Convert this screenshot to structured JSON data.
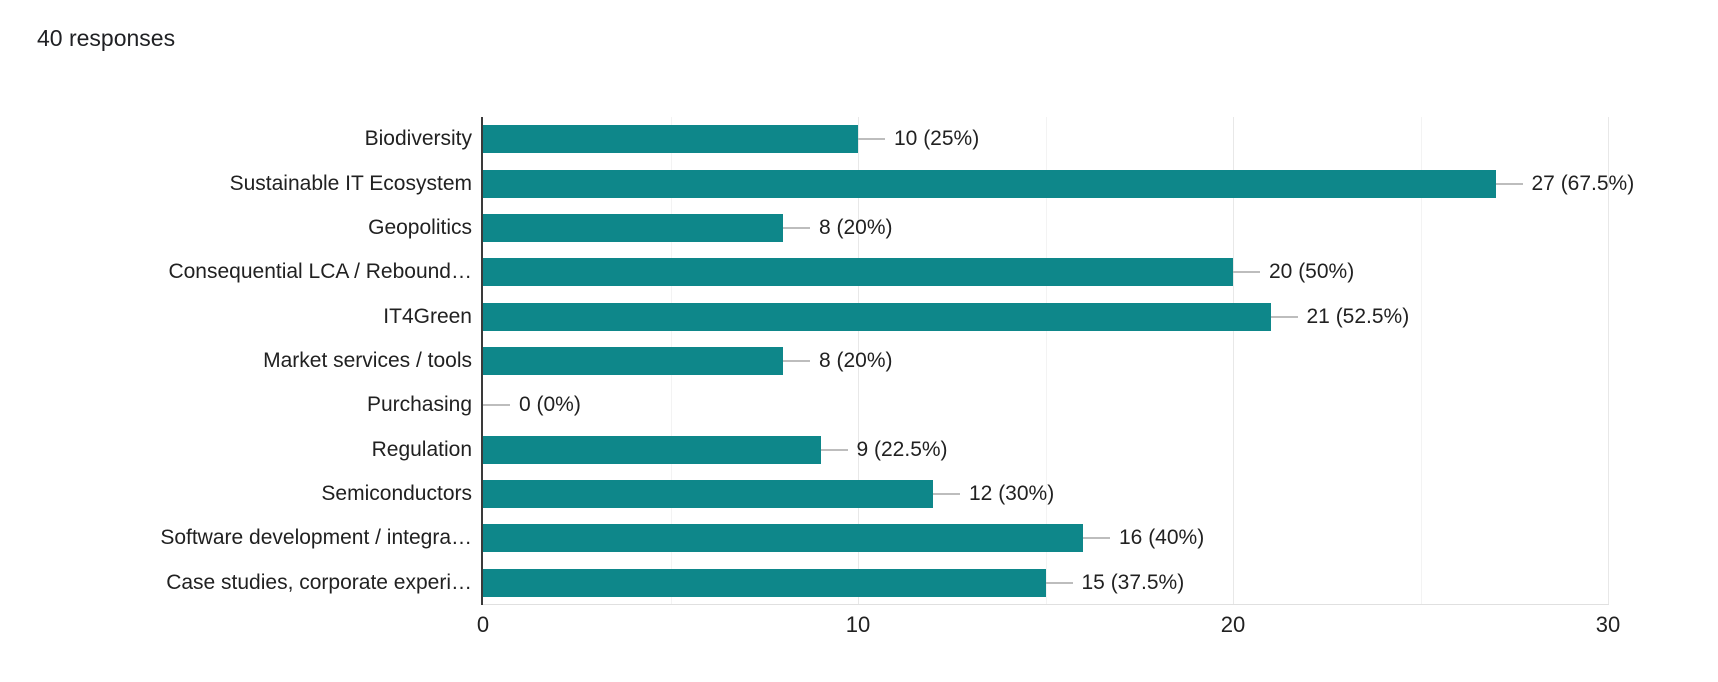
{
  "header": {
    "responses_label": "40 responses"
  },
  "colors": {
    "bar": "#0e878a",
    "axis": "#3a3a3a",
    "gridline_major": "#e8e8e8",
    "gridline_minor": "#f3f3f3",
    "whisker": "#bdbdbd",
    "baseline": "#e0e0e0",
    "text": "#212121"
  },
  "chart_data": {
    "type": "bar",
    "orientation": "horizontal",
    "title": "",
    "xlabel": "",
    "ylabel": "",
    "categories": [
      "Biodiversity",
      "Sustainable IT Ecosystem",
      "Geopolitics",
      "Consequential LCA / Rebound…",
      "IT4Green",
      "Market services / tools",
      "Purchasing",
      "Regulation",
      "Semiconductors",
      "Software development / integra…",
      "Case studies, corporate experi…"
    ],
    "values": [
      10,
      27,
      8,
      20,
      21,
      8,
      0,
      9,
      12,
      16,
      15
    ],
    "value_labels": [
      "10 (25%)",
      "27 (67.5%)",
      "8 (20%)",
      "20 (50%)",
      "21 (52.5%)",
      "8 (20%)",
      "0 (0%)",
      "9 (22.5%)",
      "12 (30%)",
      "16 (40%)",
      "15 (37.5%)"
    ],
    "xlim": [
      0,
      30
    ],
    "x_ticks": [
      0,
      10,
      20,
      30
    ],
    "x_tick_labels": [
      "0",
      "10",
      "20",
      "30"
    ],
    "minor_grid_step": 5,
    "grid": true,
    "legend_position": "none"
  }
}
